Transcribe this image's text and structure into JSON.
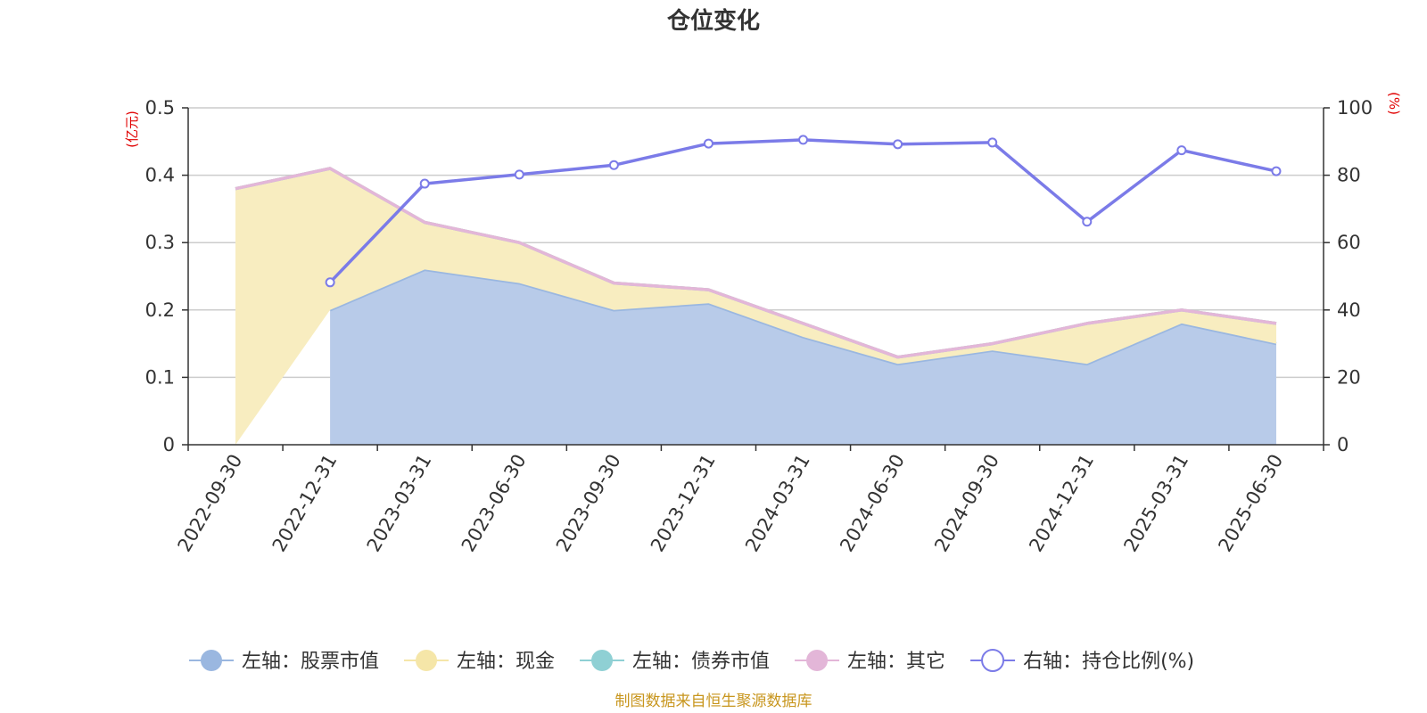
{
  "chart_data": {
    "type": "area",
    "title": "仓位变化",
    "left_axis": {
      "unit": "(亿元)",
      "min": 0,
      "max": 0.5,
      "ticks": [
        "0",
        "0.1",
        "0.2",
        "0.3",
        "0.4",
        "0.5"
      ]
    },
    "right_axis": {
      "unit": "(%)",
      "min": 0,
      "max": 100,
      "ticks": [
        "0",
        "20",
        "40",
        "60",
        "80",
        "100"
      ]
    },
    "categories": [
      "2022-09-30",
      "2022-12-31",
      "2023-03-31",
      "2023-06-30",
      "2023-09-30",
      "2023-12-31",
      "2024-03-31",
      "2024-06-30",
      "2024-09-30",
      "2024-12-31",
      "2025-03-31",
      "2025-06-30"
    ],
    "series": [
      {
        "name": "左轴：股票市值",
        "axis": "left",
        "kind": "area",
        "color": "#9ab7e0",
        "fill": "#b8cbe9",
        "values": [
          null,
          0.2,
          0.26,
          0.24,
          0.2,
          0.21,
          0.16,
          0.12,
          0.14,
          0.12,
          0.18,
          0.15
        ]
      },
      {
        "name": "左轴：现金",
        "axis": "left",
        "kind": "area",
        "color": "#f5e6a8",
        "fill": "#f8edc0",
        "values": [
          0.38,
          0.21,
          0.07,
          0.06,
          0.04,
          0.02,
          0.02,
          0.01,
          0.01,
          0.06,
          0.02,
          0.03
        ]
      },
      {
        "name": "左轴：债券市值",
        "axis": "left",
        "kind": "area",
        "color": "#8fd0d4",
        "fill": "#8fd0d4",
        "values": [
          0,
          0,
          0,
          0,
          0,
          0,
          0,
          0,
          0,
          0,
          0,
          0
        ]
      },
      {
        "name": "左轴：其它",
        "axis": "left",
        "kind": "area",
        "color": "#e3b6d8",
        "fill": "#e3b6d8",
        "values": [
          0,
          0,
          0,
          0,
          0,
          0,
          0,
          0,
          0,
          0,
          0,
          0
        ]
      },
      {
        "name": "右轴：持仓比例(%)",
        "axis": "right",
        "kind": "line",
        "color": "#7b7be8",
        "values": [
          null,
          48.2,
          77.5,
          80.2,
          83,
          89.4,
          90.5,
          89.2,
          89.7,
          66.2,
          87.4,
          81.2
        ]
      }
    ],
    "grid": true,
    "legend_position": "bottom"
  },
  "source_note": "制图数据来自恒生聚源数据库"
}
